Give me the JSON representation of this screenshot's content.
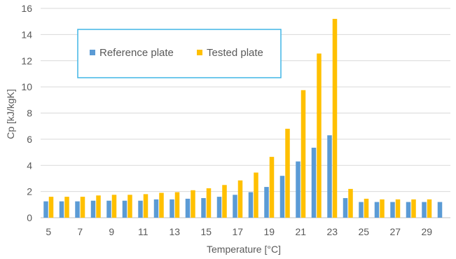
{
  "chart_data": {
    "type": "bar",
    "x": [
      5,
      6,
      7,
      8,
      9,
      10,
      11,
      12,
      13,
      14,
      15,
      16,
      17,
      18,
      19,
      20,
      21,
      22,
      23,
      24,
      25,
      26,
      27,
      28,
      29,
      30
    ],
    "x_tick_labels": [
      "5",
      "7",
      "9",
      "11",
      "13",
      "15",
      "17",
      "19",
      "21",
      "23",
      "25",
      "27",
      "29"
    ],
    "series": [
      {
        "name": "Reference plate",
        "color": "#5b9bd5",
        "values": [
          1.25,
          1.25,
          1.25,
          1.3,
          1.3,
          1.3,
          1.3,
          1.4,
          1.4,
          1.45,
          1.5,
          1.6,
          1.75,
          1.95,
          2.35,
          3.2,
          4.3,
          5.35,
          6.3,
          1.5,
          1.2,
          1.2,
          1.2,
          1.2,
          1.2,
          1.2
        ]
      },
      {
        "name": "Tested plate",
        "color": "#ffc000",
        "values": [
          1.6,
          1.6,
          1.6,
          1.7,
          1.75,
          1.75,
          1.8,
          1.9,
          1.95,
          2.1,
          2.25,
          2.5,
          2.85,
          3.45,
          4.65,
          6.8,
          9.75,
          12.55,
          15.2,
          2.2,
          1.45,
          1.4,
          1.4,
          1.4,
          1.4,
          null
        ]
      }
    ],
    "xlabel": "Temperature [°C]",
    "ylabel": "Cp [kJ/kgK]",
    "ylim": [
      0,
      16
    ],
    "yticks": [
      0,
      2,
      4,
      6,
      8,
      10,
      12,
      14,
      16
    ],
    "grid": "horizontal",
    "legend_placement": "top-left",
    "legend_border_color": "#41b6e6"
  }
}
